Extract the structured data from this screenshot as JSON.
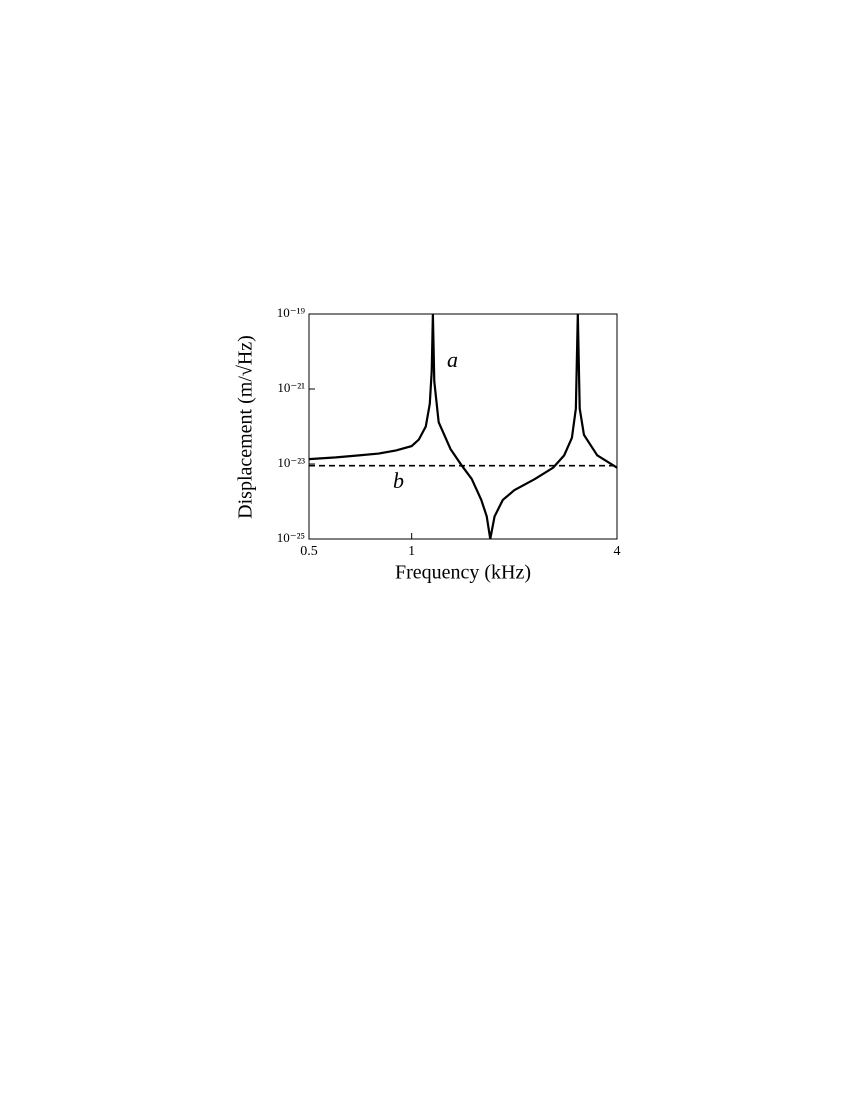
{
  "chart_data": {
    "type": "line",
    "xlabel": "Frequency (kHz)",
    "ylabel": "Displacement (m/√Hz)",
    "xscale": "log",
    "yscale": "log",
    "xlim": [
      0.5,
      4
    ],
    "ylim": [
      1e-25,
      1e-19
    ],
    "xticks": [
      0.5,
      1,
      4
    ],
    "yticks": [
      {
        "value": 1e-19,
        "label": "10⁻¹⁹"
      },
      {
        "value": 1e-21,
        "label": "10⁻²¹"
      },
      {
        "value": 1e-23,
        "label": "10⁻²³"
      },
      {
        "value": 1e-25,
        "label": "10⁻²⁵"
      }
    ],
    "series": [
      {
        "name": "a",
        "color": "#000000",
        "dashed": false,
        "x": [
          0.5,
          0.6,
          0.7,
          0.8,
          0.9,
          1.0,
          1.05,
          1.1,
          1.13,
          1.145,
          1.154,
          1.165,
          1.2,
          1.3,
          1.4,
          1.5,
          1.6,
          1.66,
          1.7,
          1.75,
          1.85,
          2.0,
          2.3,
          2.6,
          2.8,
          2.95,
          3.03,
          3.07,
          3.11,
          3.2,
          3.5,
          4.0
        ],
        "values": [
          1.35e-23,
          1.5e-23,
          1.7e-23,
          1.9e-23,
          2.3e-23,
          3e-23,
          4.5e-23,
          1e-22,
          4e-22,
          3e-21,
          1e-19,
          1.6e-21,
          1.3e-22,
          2.5e-23,
          9.3e-24,
          4e-24,
          1.1e-24,
          4e-25,
          1e-25,
          4e-25,
          1.1e-24,
          2e-24,
          4e-24,
          8e-24,
          1.7e-23,
          5e-23,
          3e-22,
          1e-19,
          3e-22,
          6e-23,
          1.7e-23,
          8e-24
        ]
      },
      {
        "name": "b",
        "color": "#000000",
        "dashed": true,
        "x": [
          0.5,
          4.0
        ],
        "values": [
          9e-24,
          9e-24
        ]
      }
    ]
  }
}
